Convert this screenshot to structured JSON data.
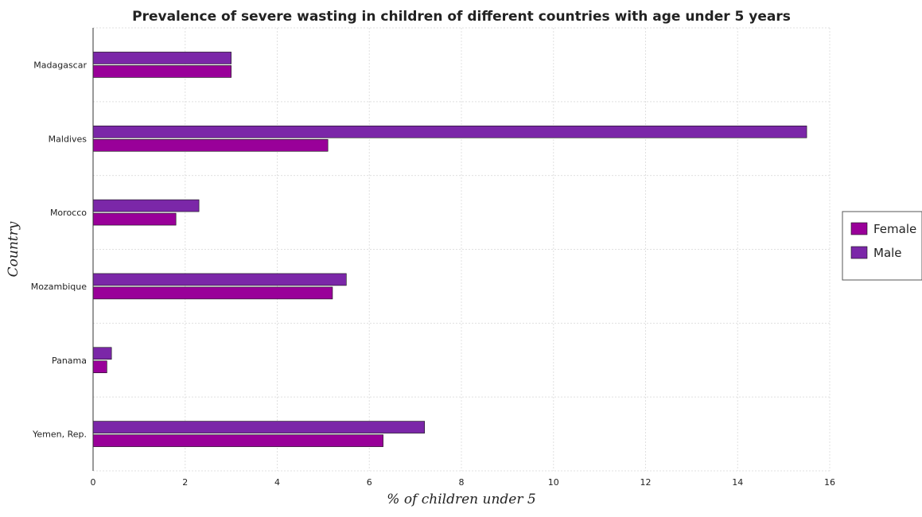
{
  "chart_data": {
    "type": "bar",
    "orientation": "horizontal",
    "title": "Prevalence of severe wasting in children of different countries with age under 5 years",
    "xlabel": "% of children under 5",
    "ylabel": "Country",
    "categories": [
      "Madagascar",
      "Maldives",
      "Morocco",
      "Mozambique",
      "Panama",
      "Yemen, Rep."
    ],
    "series": [
      {
        "name": "Female",
        "color": "#990099",
        "values": [
          3.0,
          5.1,
          1.8,
          5.2,
          0.3,
          6.3
        ]
      },
      {
        "name": "Male",
        "color": "#7b27a8",
        "values": [
          3.0,
          15.5,
          2.3,
          5.5,
          0.4,
          7.2
        ]
      }
    ],
    "xlim": [
      0,
      16
    ],
    "xticks": [
      0,
      2,
      4,
      6,
      8,
      10,
      12,
      14,
      16
    ],
    "grid": true,
    "legend_position": "right"
  }
}
